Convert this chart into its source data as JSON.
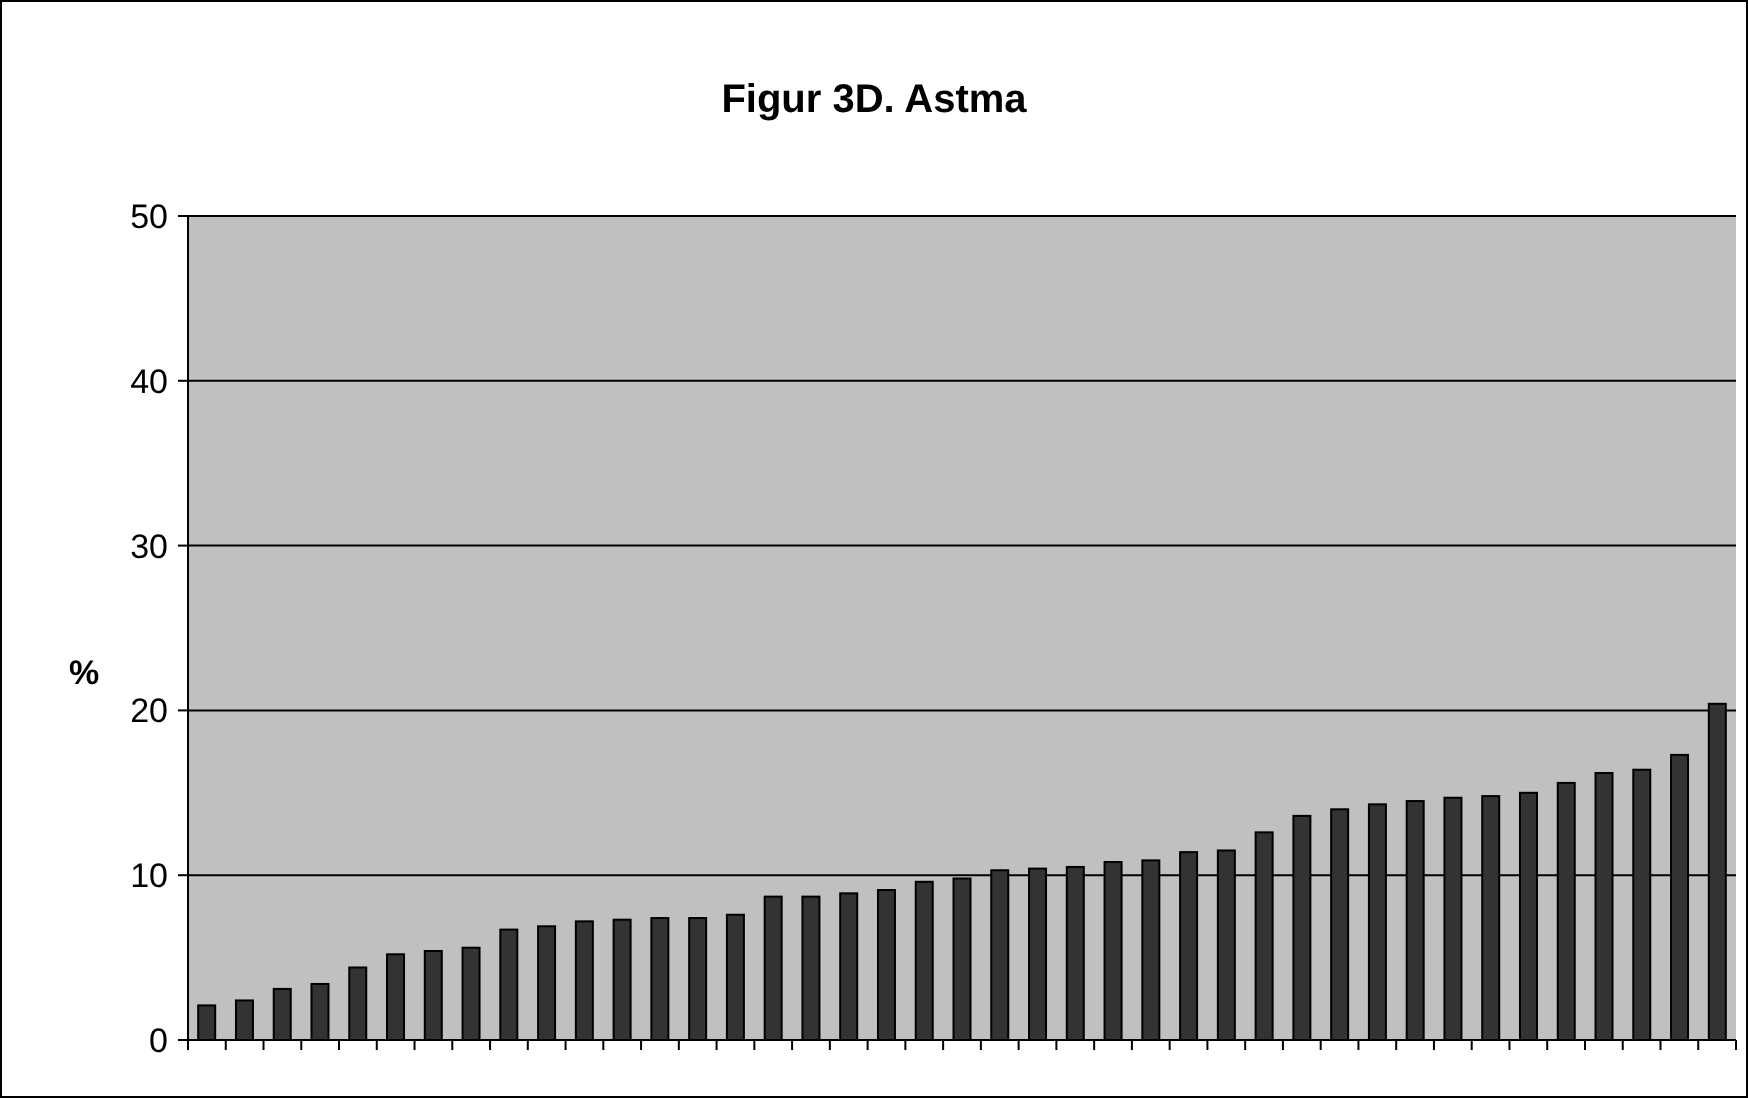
{
  "chart_data": {
    "type": "bar",
    "title": "Figur 3D. Astma",
    "ylabel": "%",
    "categories": [
      null,
      null,
      null,
      null,
      null,
      null,
      null,
      null,
      null,
      null,
      null,
      null,
      null,
      null,
      null,
      null,
      null,
      null,
      null,
      null,
      null,
      null,
      null,
      null,
      null,
      null,
      null,
      null,
      null,
      null,
      null,
      null,
      null,
      null,
      null,
      null,
      null,
      null,
      null,
      null,
      null
    ],
    "values": [
      2.1,
      2.4,
      3.1,
      3.4,
      4.4,
      5.2,
      5.4,
      5.6,
      6.7,
      6.9,
      7.2,
      7.3,
      7.4,
      7.4,
      7.6,
      8.7,
      8.7,
      8.9,
      9.1,
      9.6,
      9.8,
      10.3,
      10.4,
      10.5,
      10.8,
      10.9,
      11.4,
      11.5,
      12.6,
      13.6,
      14.0,
      14.3,
      14.5,
      14.7,
      14.8,
      15.0,
      15.6,
      16.2,
      16.4,
      17.3,
      20.4
    ],
    "color": "#333333",
    "ylim": [
      0,
      50
    ],
    "yticks": [
      0,
      10,
      20,
      30,
      40,
      50
    ],
    "grid": "y"
  }
}
